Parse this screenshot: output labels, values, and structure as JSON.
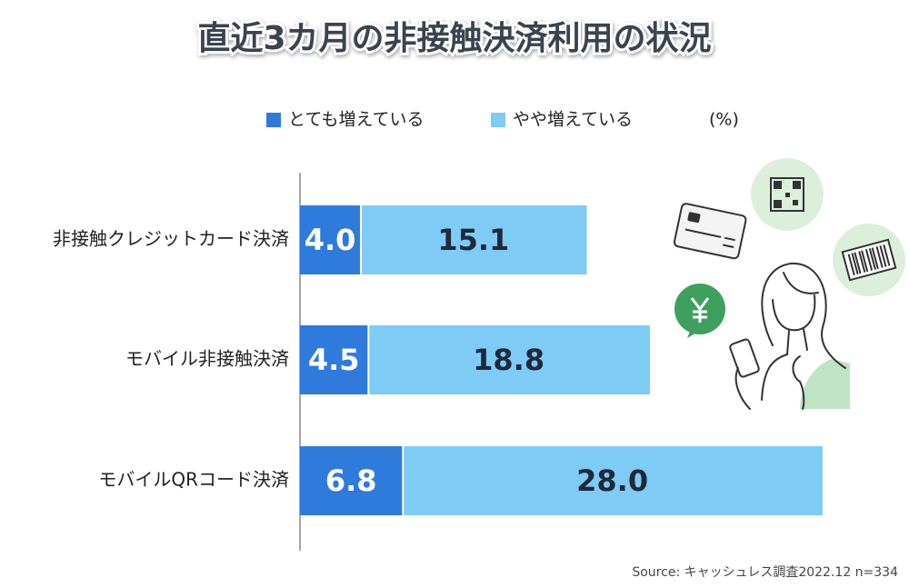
{
  "chart_data": {
    "type": "stacked-bar-horizontal",
    "title": "直近3カ月の非接触決済利用の状況",
    "unit": "(%)",
    "categories": [
      "非接触クレジットカード決済",
      "モバイル非接触決済",
      "モバイルQRコード決済"
    ],
    "series": [
      {
        "name": "とても増えている",
        "color": "#2f7bdc",
        "values": [
          4.0,
          4.5,
          6.8
        ],
        "value_labels": [
          "4.0",
          "4.5",
          "6.8"
        ]
      },
      {
        "name": "やや増えている",
        "color": "#7ecbf6",
        "values": [
          15.1,
          18.8,
          28.0
        ],
        "value_labels": [
          "15.1",
          "18.8",
          "28.0"
        ]
      }
    ],
    "source": "Source: キャッシュレス調査2022.12 n=334"
  }
}
